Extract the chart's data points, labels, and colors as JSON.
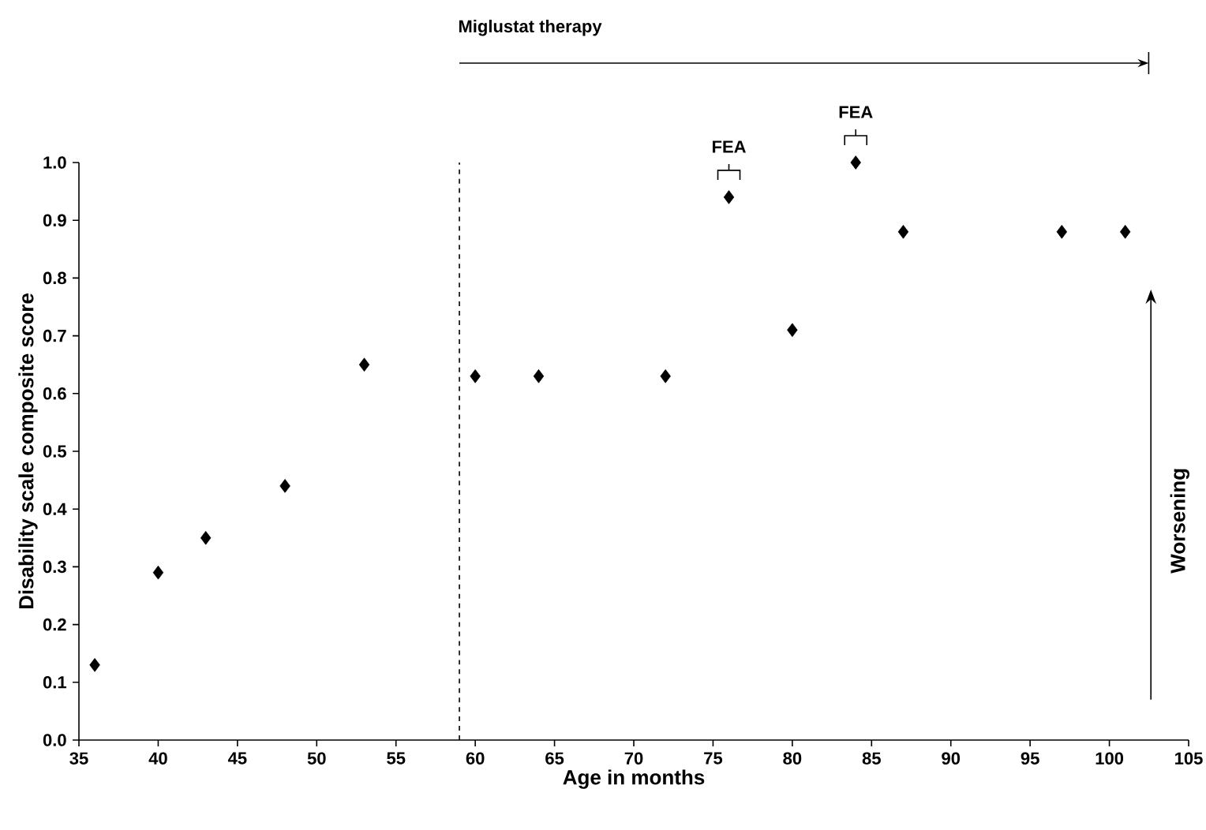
{
  "chart_data": {
    "type": "scatter",
    "xlabel": "Age in months",
    "ylabel": "Disability scale composite score",
    "x": [
      36,
      40,
      43,
      48,
      53,
      60,
      64,
      72,
      76,
      80,
      84,
      87,
      97,
      101
    ],
    "values": [
      0.13,
      0.29,
      0.35,
      0.44,
      0.65,
      0.63,
      0.63,
      0.63,
      0.94,
      0.71,
      1.0,
      0.88,
      0.88,
      0.88
    ],
    "color": "#000000",
    "marker": "diamond",
    "grid": false,
    "xlim": [
      35,
      105
    ],
    "xticks": [
      35,
      40,
      45,
      50,
      55,
      60,
      65,
      70,
      75,
      80,
      85,
      90,
      95,
      100,
      105
    ],
    "ylim": [
      0,
      1
    ],
    "yticks": [
      {
        "value": 0,
        "label": "0.0"
      },
      {
        "value": 0.1,
        "label": "0.1"
      },
      {
        "value": 0.2,
        "label": "0.2"
      },
      {
        "value": 0.3,
        "label": "0.3"
      },
      {
        "value": 0.4,
        "label": "0.4"
      },
      {
        "value": 0.5,
        "label": "0.5"
      },
      {
        "value": 0.6,
        "label": "0.6"
      },
      {
        "value": 0.7,
        "label": "0.7"
      },
      {
        "value": 0.8,
        "label": "0.8"
      },
      {
        "value": 0.9,
        "label": "0.9"
      },
      {
        "value": 1,
        "label": "1.0"
      }
    ],
    "ref_lines": [
      {
        "axis": "x",
        "value": 59,
        "label": "Miglustat therapy",
        "line_style": "dashed",
        "color": "#000000"
      }
    ],
    "annotations": [
      {
        "text": "FEA",
        "x": 76,
        "y": 0.94
      },
      {
        "text": "FEA",
        "x": 84,
        "y": 1.0
      },
      "Worsening"
    ]
  }
}
